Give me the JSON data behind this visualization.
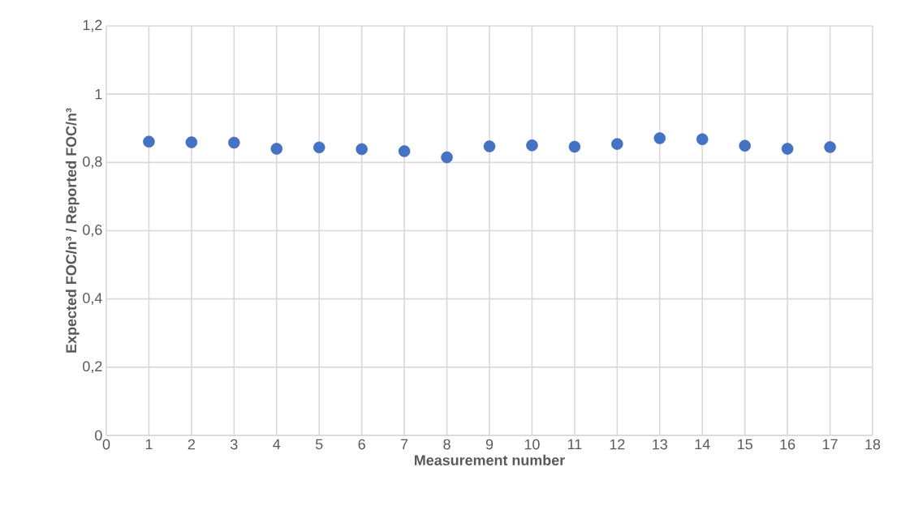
{
  "chart_data": {
    "type": "scatter",
    "xlabel": "Measurement number",
    "ylabel": "Expected FOC/n³ / Reported FOC/n³",
    "series": [
      {
        "color": "#4472c4",
        "x": [
          1,
          2,
          3,
          4,
          5,
          6,
          7,
          8,
          9,
          10,
          11,
          12,
          13,
          14,
          15,
          16,
          17
        ],
        "values": [
          0.861,
          0.859,
          0.858,
          0.84,
          0.844,
          0.839,
          0.833,
          0.815,
          0.847,
          0.85,
          0.846,
          0.854,
          0.871,
          0.868,
          0.849,
          0.84,
          0.845
        ]
      }
    ],
    "xlim": [
      0,
      18
    ],
    "xticks": [
      0,
      1,
      2,
      3,
      4,
      5,
      6,
      7,
      8,
      9,
      10,
      11,
      12,
      13,
      14,
      15,
      16,
      17,
      18
    ],
    "ylim": [
      0,
      1.2
    ],
    "yticks": [
      0,
      {
        "value": 0.2,
        "label": "0,2"
      },
      {
        "value": 0.4,
        "label": "0,4"
      },
      {
        "value": 0.6,
        "label": "0,6"
      },
      {
        "value": 0.8,
        "label": "0,8"
      },
      1,
      {
        "value": 1.2,
        "label": "1,2"
      }
    ],
    "grid": true,
    "marker": "circle"
  }
}
